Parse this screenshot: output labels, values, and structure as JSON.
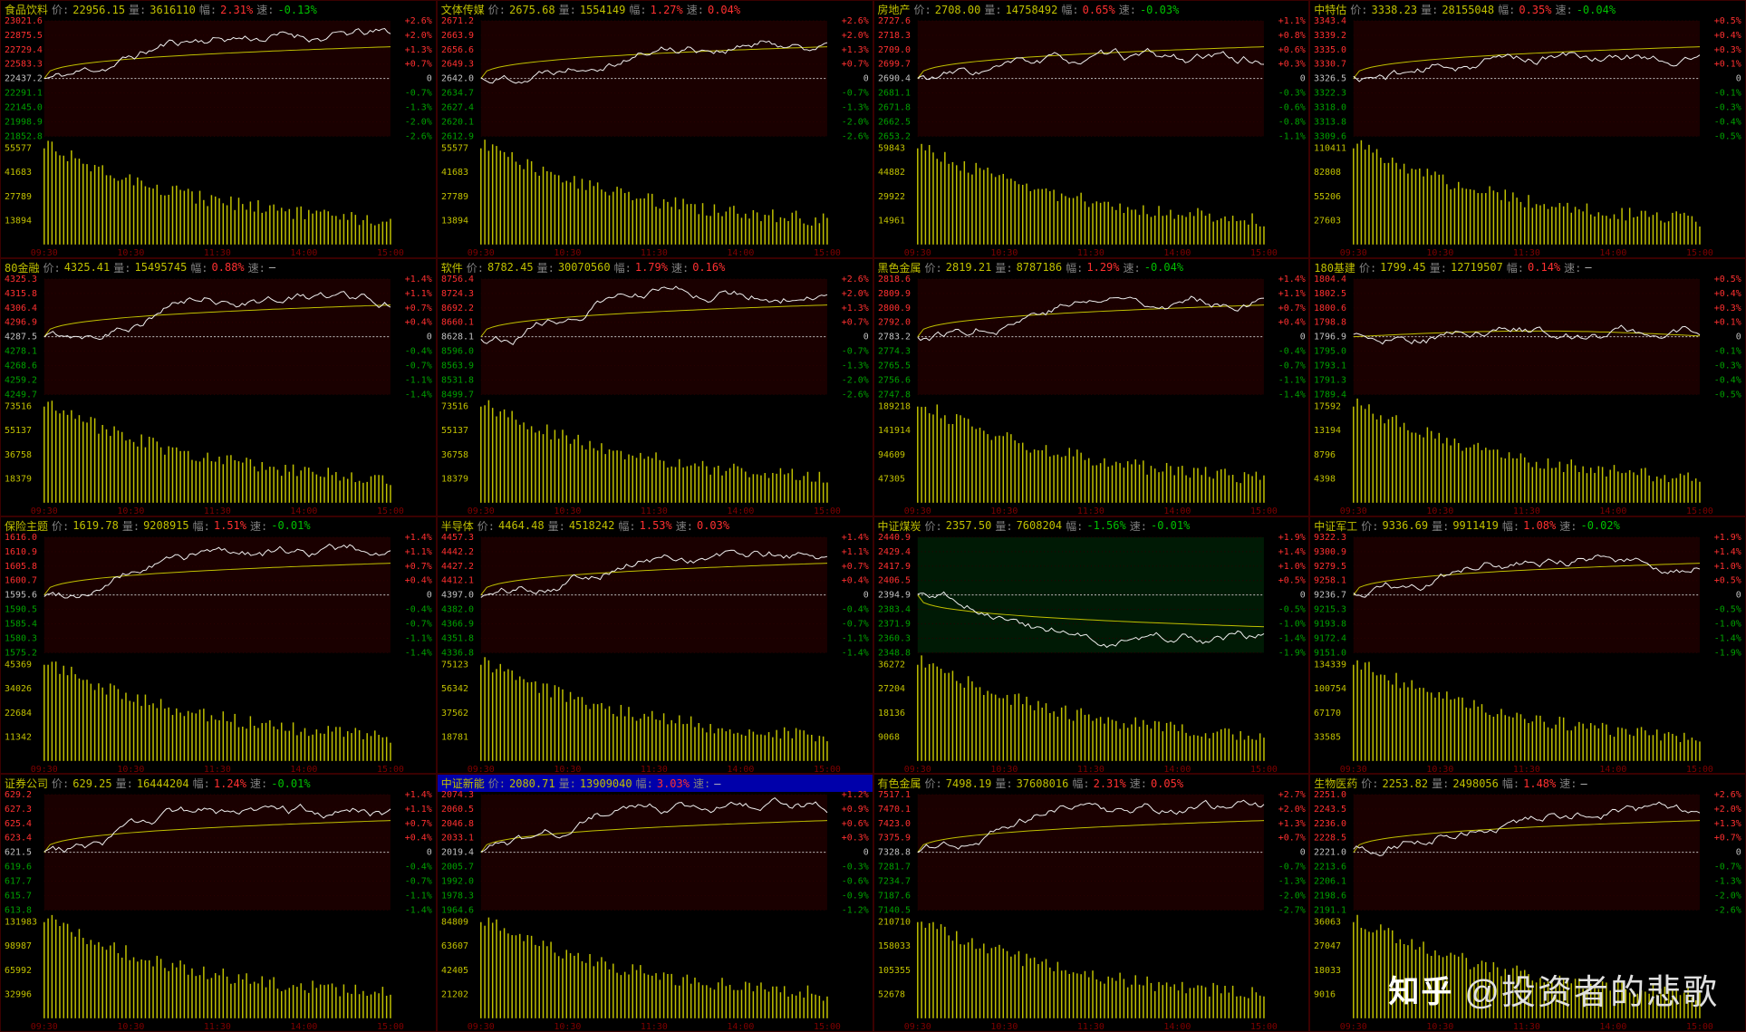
{
  "colors": {
    "bg": "#000000",
    "panel_border": "#3a0000",
    "up": "#ff3030",
    "down": "#00c000",
    "neutral": "#c0c0c0",
    "yellow": "#c0c000",
    "grey": "#808080",
    "bg_up": "#1a0000",
    "bg_down": "#001a05",
    "gridline": "#2a0000"
  },
  "time_axis": [
    "09:30",
    "10:30",
    "11:30",
    "14:00",
    "15:00"
  ],
  "header_labels": {
    "price": "价:",
    "vol": "量:",
    "chg": "幅:",
    "spd": "速:"
  },
  "watermark": {
    "logo": "知乎",
    "text": "@投资者的悲歌"
  },
  "panels": [
    {
      "name": "食品饮料",
      "price": "22956.15",
      "vol": "3616110",
      "chg": "2.31%",
      "chg_pos": true,
      "spd": "-0.13%",
      "spd_pos": false,
      "bg": "up",
      "y_left_up": [
        "23021.6",
        "22875.5",
        "22729.4",
        "22583.3"
      ],
      "y_left_mid": "22437.2",
      "y_left_down": [
        "22291.1",
        "22145.0",
        "21998.9",
        "21852.8"
      ],
      "y_right_up": [
        "+2.6%",
        "+2.0%",
        "+1.3%",
        "+0.7%"
      ],
      "y_right_down": [
        "-0.7%",
        "-1.3%",
        "-2.0%",
        "-2.6%"
      ],
      "vol_labels": [
        "55577",
        "41683",
        "27789",
        "13894"
      ],
      "avg_shape": "smooth-upper",
      "price_seed": 11,
      "price_bias": 1.0
    },
    {
      "name": "文体传媒",
      "price": "2675.68",
      "vol": "1554149",
      "chg": "1.27%",
      "chg_pos": true,
      "spd": "0.04%",
      "spd_pos": true,
      "bg": "up",
      "y_left_up": [
        "2671.2",
        "2663.9",
        "2656.6",
        "2649.3"
      ],
      "y_left_mid": "2642.0",
      "y_left_down": [
        "2634.7",
        "2627.4",
        "2620.1",
        "2612.9"
      ],
      "y_right_up": [
        "+2.6%",
        "+2.0%",
        "+1.3%",
        "+0.7%"
      ],
      "y_right_down": [
        "-0.7%",
        "-1.3%",
        "-2.0%",
        "-2.6%"
      ],
      "vol_labels": [
        "55577",
        "41683",
        "27789",
        "13894"
      ],
      "avg_shape": "smooth-upper",
      "price_seed": 22,
      "price_bias": 0.8
    },
    {
      "name": "房地产",
      "price": "2708.00",
      "vol": "14758492",
      "chg": "0.65%",
      "chg_pos": true,
      "spd": "-0.03%",
      "spd_pos": false,
      "bg": "up",
      "y_left_up": [
        "2727.6",
        "2718.3",
        "2709.0",
        "2699.7"
      ],
      "y_left_mid": "2690.4",
      "y_left_down": [
        "2681.1",
        "2671.8",
        "2662.5",
        "2653.2"
      ],
      "y_right_up": [
        "+1.1%",
        "+0.8%",
        "+0.6%",
        "+0.3%"
      ],
      "y_right_down": [
        "-0.3%",
        "-0.6%",
        "-0.8%",
        "-1.1%"
      ],
      "vol_labels": [
        "59843",
        "44882",
        "29922",
        "14961"
      ],
      "avg_shape": "smooth-upper",
      "price_seed": 33,
      "price_bias": 0.4
    },
    {
      "name": "中特估",
      "price": "3338.23",
      "vol": "28155048",
      "chg": "0.35%",
      "chg_pos": true,
      "spd": "-0.04%",
      "spd_pos": false,
      "bg": "up",
      "y_left_up": [
        "3343.4",
        "3339.2",
        "3335.0",
        "3330.7"
      ],
      "y_left_mid": "3326.5",
      "y_left_down": [
        "3322.3",
        "3318.0",
        "3313.8",
        "3309.6"
      ],
      "y_right_up": [
        "+0.5%",
        "+0.4%",
        "+0.3%",
        "+0.1%"
      ],
      "y_right_down": [
        "-0.1%",
        "-0.3%",
        "-0.4%",
        "-0.5%"
      ],
      "vol_labels": [
        "110411",
        "82808",
        "55206",
        "27603"
      ],
      "avg_shape": "smooth-upper",
      "price_seed": 44,
      "price_bias": 0.5
    },
    {
      "name": "80金融",
      "price": "4325.41",
      "vol": "15495745",
      "chg": "0.88%",
      "chg_pos": true,
      "spd": "—",
      "spd_pos": null,
      "bg": "up",
      "y_left_up": [
        "4325.3",
        "4315.8",
        "4306.4",
        "4296.9"
      ],
      "y_left_mid": "4287.5",
      "y_left_down": [
        "4278.1",
        "4268.6",
        "4259.2",
        "4249.7"
      ],
      "y_right_up": [
        "+1.4%",
        "+1.1%",
        "+0.7%",
        "+0.4%"
      ],
      "y_right_down": [
        "-0.4%",
        "-0.7%",
        "-1.1%",
        "-1.4%"
      ],
      "vol_labels": [
        "73516",
        "55137",
        "36758",
        "18379"
      ],
      "avg_shape": "smooth-upper",
      "price_seed": 55,
      "price_bias": 0.9
    },
    {
      "name": "软件",
      "price": "8782.45",
      "vol": "30070560",
      "chg": "1.79%",
      "chg_pos": true,
      "spd": "0.16%",
      "spd_pos": true,
      "bg": "up",
      "y_left_up": [
        "8756.4",
        "8724.3",
        "8692.2",
        "8660.1"
      ],
      "y_left_mid": "8628.1",
      "y_left_down": [
        "8596.0",
        "8563.9",
        "8531.8",
        "8499.7"
      ],
      "y_right_up": [
        "+2.6%",
        "+2.0%",
        "+1.3%",
        "+0.7%"
      ],
      "y_right_down": [
        "-0.7%",
        "-1.3%",
        "-2.0%",
        "-2.6%"
      ],
      "vol_labels": [
        "73516",
        "55137",
        "36758",
        "18379"
      ],
      "avg_shape": "smooth-upper",
      "price_seed": 66,
      "price_bias": 1.1
    },
    {
      "name": "黑色金属",
      "price": "2819.21",
      "vol": "8787186",
      "chg": "1.29%",
      "chg_pos": true,
      "spd": "-0.04%",
      "spd_pos": false,
      "bg": "up",
      "y_left_up": [
        "2818.6",
        "2809.9",
        "2800.9",
        "2792.0"
      ],
      "y_left_mid": "2783.2",
      "y_left_down": [
        "2774.3",
        "2765.5",
        "2756.6",
        "2747.8"
      ],
      "y_right_up": [
        "+1.4%",
        "+1.1%",
        "+0.7%",
        "+0.4%"
      ],
      "y_right_down": [
        "-0.4%",
        "-0.7%",
        "-1.1%",
        "-1.4%"
      ],
      "vol_labels": [
        "189218",
        "141914",
        "94609",
        "47305"
      ],
      "avg_shape": "smooth-upper",
      "price_seed": 77,
      "price_bias": 0.9
    },
    {
      "name": "180基建",
      "price": "1799.45",
      "vol": "12719507",
      "chg": "0.14%",
      "chg_pos": true,
      "spd": "—",
      "spd_pos": null,
      "bg": "up",
      "y_left_up": [
        "1804.4",
        "1802.5",
        "1800.6",
        "1798.8"
      ],
      "y_left_mid": "1796.9",
      "y_left_down": [
        "1795.0",
        "1793.1",
        "1791.3",
        "1789.4"
      ],
      "y_right_up": [
        "+0.5%",
        "+0.4%",
        "+0.3%",
        "+0.1%"
      ],
      "y_right_down": [
        "-0.1%",
        "-0.3%",
        "-0.4%",
        "-0.5%"
      ],
      "vol_labels": [
        "17592",
        "13194",
        "8796",
        "4398"
      ],
      "avg_shape": "smooth-mid",
      "price_seed": 88,
      "price_bias": 0.1
    },
    {
      "name": "保险主题",
      "price": "1619.78",
      "vol": "9208915",
      "chg": "1.51%",
      "chg_pos": true,
      "spd": "-0.01%",
      "spd_pos": false,
      "bg": "up",
      "y_left_up": [
        "1616.0",
        "1610.9",
        "1605.8",
        "1600.7"
      ],
      "y_left_mid": "1595.6",
      "y_left_down": [
        "1590.5",
        "1585.4",
        "1580.3",
        "1575.2"
      ],
      "y_right_up": [
        "+1.4%",
        "+1.1%",
        "+0.7%",
        "+0.4%"
      ],
      "y_right_down": [
        "-0.4%",
        "-0.7%",
        "-1.1%",
        "-1.4%"
      ],
      "vol_labels": [
        "45369",
        "34026",
        "22684",
        "11342"
      ],
      "avg_shape": "smooth-upper",
      "price_seed": 99,
      "price_bias": 1.0
    },
    {
      "name": "半导体",
      "price": "4464.48",
      "vol": "4518242",
      "chg": "1.53%",
      "chg_pos": true,
      "spd": "0.03%",
      "spd_pos": true,
      "bg": "up",
      "y_left_up": [
        "4457.3",
        "4442.2",
        "4427.2",
        "4412.1"
      ],
      "y_left_mid": "4397.0",
      "y_left_down": [
        "4382.0",
        "4366.9",
        "4351.8",
        "4336.8"
      ],
      "y_right_up": [
        "+1.4%",
        "+1.1%",
        "+0.7%",
        "+0.4%"
      ],
      "y_right_down": [
        "-0.4%",
        "-0.7%",
        "-1.1%",
        "-1.4%"
      ],
      "vol_labels": [
        "75123",
        "56342",
        "37562",
        "18781"
      ],
      "avg_shape": "smooth-upper",
      "price_seed": 101,
      "price_bias": 0.9
    },
    {
      "name": "中证煤炭",
      "price": "2357.50",
      "vol": "7608204",
      "chg": "-1.56%",
      "chg_pos": false,
      "spd": "-0.01%",
      "spd_pos": false,
      "bg": "down",
      "y_left_up": [
        "2440.9",
        "2429.4",
        "2417.9",
        "2406.5"
      ],
      "y_left_mid": "2394.9",
      "y_left_down": [
        "2383.4",
        "2371.9",
        "2360.3",
        "2348.8"
      ],
      "y_right_up": [
        "+1.9%",
        "+1.4%",
        "+1.0%",
        "+0.5%"
      ],
      "y_right_down": [
        "-0.5%",
        "-1.0%",
        "-1.4%",
        "-1.9%"
      ],
      "vol_labels": [
        "36272",
        "27204",
        "18136",
        "9068"
      ],
      "avg_shape": "smooth-lower",
      "price_seed": 112,
      "price_bias": -1.0
    },
    {
      "name": "中证军工",
      "price": "9336.69",
      "vol": "9911419",
      "chg": "1.08%",
      "chg_pos": true,
      "spd": "-0.02%",
      "spd_pos": false,
      "bg": "up",
      "y_left_up": [
        "9322.3",
        "9300.9",
        "9279.5",
        "9258.1"
      ],
      "y_left_mid": "9236.7",
      "y_left_down": [
        "9215.3",
        "9193.8",
        "9172.4",
        "9151.0"
      ],
      "y_right_up": [
        "+1.9%",
        "+1.4%",
        "+1.0%",
        "+0.5%"
      ],
      "y_right_down": [
        "-0.5%",
        "-1.0%",
        "-1.4%",
        "-1.9%"
      ],
      "vol_labels": [
        "134339",
        "100754",
        "67170",
        "33585"
      ],
      "avg_shape": "smooth-upper",
      "price_seed": 123,
      "price_bias": 0.8
    },
    {
      "name": "证券公司",
      "price": "629.25",
      "vol": "16444204",
      "chg": "1.24%",
      "chg_pos": true,
      "spd": "-0.01%",
      "spd_pos": false,
      "bg": "up",
      "y_left_up": [
        "629.2",
        "627.3",
        "625.4",
        "623.4"
      ],
      "y_left_mid": "621.5",
      "y_left_down": [
        "619.6",
        "617.7",
        "615.7",
        "613.8"
      ],
      "y_right_up": [
        "+1.4%",
        "+1.1%",
        "+0.7%",
        "+0.4%"
      ],
      "y_right_down": [
        "-0.4%",
        "-0.7%",
        "-1.1%",
        "-1.4%"
      ],
      "vol_labels": [
        "131983",
        "98987",
        "65992",
        "32996"
      ],
      "avg_shape": "smooth-upper",
      "price_seed": 134,
      "price_bias": 0.9
    },
    {
      "name": "中证新能",
      "price": "2080.71",
      "vol": "13909040",
      "chg": "3.03%",
      "chg_pos": true,
      "spd": "—",
      "spd_pos": null,
      "bg": "up",
      "highlight": true,
      "y_left_up": [
        "2074.3",
        "2060.5",
        "2046.8",
        "2033.1"
      ],
      "y_left_mid": "2019.4",
      "y_left_down": [
        "2005.7",
        "1992.0",
        "1978.3",
        "1964.6"
      ],
      "y_right_up": [
        "+1.2%",
        "+0.9%",
        "+0.6%",
        "+0.3%"
      ],
      "y_right_down": [
        "-0.3%",
        "-0.6%",
        "-0.9%",
        "-1.2%"
      ],
      "vol_labels": [
        "84809",
        "63607",
        "42405",
        "21202"
      ],
      "avg_shape": "smooth-upper",
      "price_seed": 145,
      "price_bias": 1.1
    },
    {
      "name": "有色金属",
      "price": "7498.19",
      "vol": "37608016",
      "chg": "2.31%",
      "chg_pos": true,
      "spd": "0.05%",
      "spd_pos": true,
      "bg": "up",
      "y_left_up": [
        "7517.1",
        "7470.1",
        "7423.0",
        "7375.9"
      ],
      "y_left_mid": "7328.8",
      "y_left_down": [
        "7281.7",
        "7234.7",
        "7187.6",
        "7140.5"
      ],
      "y_right_up": [
        "+2.7%",
        "+2.0%",
        "+1.3%",
        "+0.7%"
      ],
      "y_right_down": [
        "-0.7%",
        "-1.3%",
        "-2.0%",
        "-2.7%"
      ],
      "vol_labels": [
        "210710",
        "158033",
        "105355",
        "52678"
      ],
      "avg_shape": "smooth-upper",
      "price_seed": 156,
      "price_bias": 1.0
    },
    {
      "name": "生物医药",
      "price": "2253.82",
      "vol": "2498056",
      "chg": "1.48%",
      "chg_pos": true,
      "spd": "—",
      "spd_pos": null,
      "bg": "up",
      "y_left_up": [
        "2251.0",
        "2243.5",
        "2236.0",
        "2228.5"
      ],
      "y_left_mid": "2221.0",
      "y_left_down": [
        "2213.6",
        "2206.1",
        "2198.6",
        "2191.1"
      ],
      "y_right_up": [
        "+2.6%",
        "+2.0%",
        "+1.3%",
        "+0.7%"
      ],
      "y_right_down": [
        "-0.7%",
        "-1.3%",
        "-2.0%",
        "-2.6%"
      ],
      "vol_labels": [
        "36063",
        "27047",
        "18033",
        "9016"
      ],
      "avg_shape": "smooth-upper",
      "price_seed": 167,
      "price_bias": 0.9
    }
  ]
}
